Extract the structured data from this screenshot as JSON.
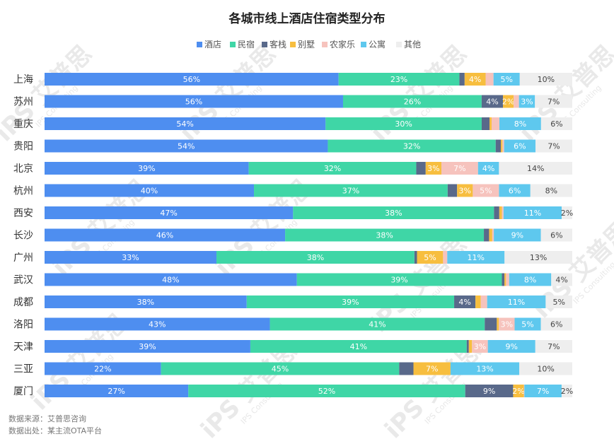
{
  "chart_data": {
    "type": "bar",
    "orientation": "horizontal",
    "stacked": true,
    "normalized": "percent",
    "title": "各城市线上酒店住宿类型分布",
    "categories": [
      "上海",
      "苏州",
      "重庆",
      "贵阳",
      "北京",
      "杭州",
      "西安",
      "长沙",
      "广州",
      "武汉",
      "成都",
      "洛阳",
      "天津",
      "三亚",
      "厦门"
    ],
    "series": [
      {
        "name": "酒店",
        "color": "#4e8ef0",
        "values": [
          56,
          56,
          54,
          54,
          39,
          40,
          47,
          46,
          33,
          48,
          38,
          43,
          39,
          22,
          27
        ],
        "labels": [
          "56%",
          "56%",
          "54%",
          "54%",
          "39%",
          "40%",
          "47%",
          "46%",
          "33%",
          "48%",
          "38%",
          "43%",
          "39%",
          "22%",
          "27%"
        ]
      },
      {
        "name": "民宿",
        "color": "#3fd6a6",
        "values": [
          23,
          26,
          30,
          32,
          32,
          37,
          38,
          38,
          38,
          39,
          39,
          41,
          41,
          45,
          52
        ],
        "labels": [
          "23%",
          "26%",
          "30%",
          "32%",
          "32%",
          "37%",
          "38%",
          "38%",
          "38%",
          "39%",
          "39%",
          "41%",
          "41%",
          "45%",
          "52%"
        ]
      },
      {
        "name": "客栈",
        "color": "#59698a",
        "values": [
          1,
          4,
          1.5,
          1,
          1.8,
          1.8,
          1,
          1,
          0.5,
          0.5,
          4,
          2.3,
          0.4,
          2.7,
          9
        ],
        "labels": [
          "",
          "4%",
          "",
          "",
          "",
          "",
          "",
          "",
          "",
          "",
          "4%",
          "",
          "",
          "",
          "9%"
        ]
      },
      {
        "name": "别墅",
        "color": "#f7be3f",
        "values": [
          4,
          2,
          0.4,
          0.3,
          3,
          3,
          0.5,
          0.6,
          5,
          0.3,
          1,
          0.4,
          0.6,
          7,
          2
        ],
        "labels": [
          "4%",
          "2%",
          "",
          "",
          "3%",
          "3%",
          "",
          "",
          "5%",
          "",
          "",
          "",
          "",
          "7%",
          "2%"
        ]
      },
      {
        "name": "农家乐",
        "color": "#f6c3bd",
        "values": [
          1.5,
          1,
          1.5,
          0.3,
          7,
          5,
          0.3,
          0.3,
          0.8,
          0.6,
          1.2,
          3,
          3,
          0,
          0.1
        ],
        "labels": [
          "",
          "",
          "",
          "",
          "7%",
          "5%",
          "",
          "",
          "",
          "",
          "",
          "3%",
          "3%",
          "",
          ""
        ]
      },
      {
        "name": "公寓",
        "color": "#5ec8ee",
        "values": [
          5,
          3,
          8,
          6,
          4,
          6,
          11,
          9,
          11,
          8,
          11,
          5,
          9,
          13,
          7
        ],
        "labels": [
          "5%",
          "3%",
          "8%",
          "6%",
          "4%",
          "6%",
          "11%",
          "9%",
          "11%",
          "8%",
          "11%",
          "5%",
          "9%",
          "13%",
          "7%"
        ]
      },
      {
        "name": "其他",
        "color": "#eeeeee",
        "values": [
          10,
          7,
          6,
          7,
          14,
          8,
          2,
          6,
          13,
          4,
          5,
          6,
          7,
          10,
          2
        ],
        "labels": [
          "10%",
          "7%",
          "6%",
          "7%",
          "14%",
          "8%",
          "2%",
          "6%",
          "13%",
          "4%",
          "5%",
          "6%",
          "7%",
          "10%",
          "2%"
        ]
      }
    ],
    "legend": "top-center",
    "grid": false
  },
  "watermark": {
    "logo": "iPS 艾普思",
    "sub": "IPS Consulting"
  },
  "footer": {
    "source": "数据来源：艾普思咨询",
    "origin": "数据出处：某主流OTA平台"
  }
}
